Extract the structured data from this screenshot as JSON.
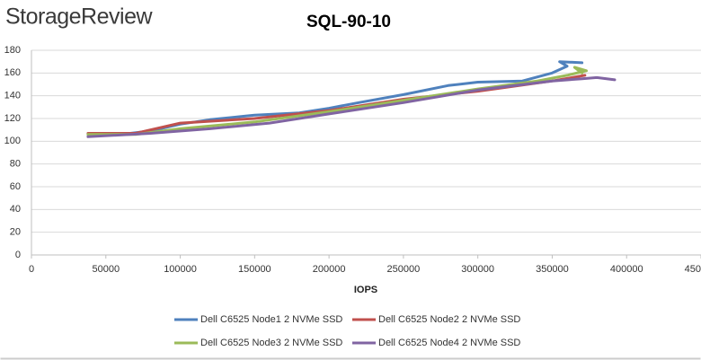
{
  "brand": "StorageReview",
  "chart_data": {
    "type": "line",
    "title": "SQL-90-10",
    "x_label": "IOPS",
    "xlim": [
      0,
      450000
    ],
    "xticks": [
      0,
      50000,
      100000,
      150000,
      200000,
      250000,
      300000,
      350000,
      400000,
      450000
    ],
    "ylim": [
      0,
      180
    ],
    "yticks": [
      0,
      20,
      40,
      60,
      80,
      100,
      120,
      140,
      160,
      180
    ],
    "grid": true,
    "series": [
      {
        "name": "Dell C6525 Node1 2 NVMe SSD",
        "color": "#4f81bd",
        "x": [
          38000,
          60000,
          80000,
          100000,
          120000,
          150000,
          180000,
          200000,
          220000,
          250000,
          280000,
          300000,
          330000,
          350000,
          360000,
          355000,
          370000
        ],
        "values": [
          106,
          106,
          109,
          115,
          119,
          123,
          125,
          129,
          134,
          141,
          149,
          152,
          153,
          160,
          166,
          170,
          169
        ]
      },
      {
        "name": "Dell C6525 Node2 2 NVMe SSD",
        "color": "#c0504d",
        "x": [
          38000,
          70000,
          100000,
          150000,
          200000,
          250000,
          300000,
          350000,
          372000
        ],
        "values": [
          107,
          107,
          116,
          120,
          127,
          137,
          144,
          153,
          158
        ]
      },
      {
        "name": "Dell C6525 Node3 2 NVMe SSD",
        "color": "#9bbb59",
        "x": [
          38000,
          70000,
          100000,
          150000,
          200000,
          250000,
          300000,
          340000,
          360000,
          373000,
          365000,
          370000
        ],
        "values": [
          106,
          106,
          111,
          117,
          126,
          136,
          146,
          153,
          158,
          162,
          165,
          160
        ]
      },
      {
        "name": "Dell C6525 Node4 2 NVMe SSD",
        "color": "#8064a2",
        "x": [
          38000,
          80000,
          120000,
          160000,
          200000,
          250000,
          300000,
          350000,
          370000,
          380000,
          392000
        ],
        "values": [
          104,
          107,
          111,
          116,
          124,
          134,
          145,
          153,
          155,
          156,
          154
        ]
      }
    ]
  }
}
